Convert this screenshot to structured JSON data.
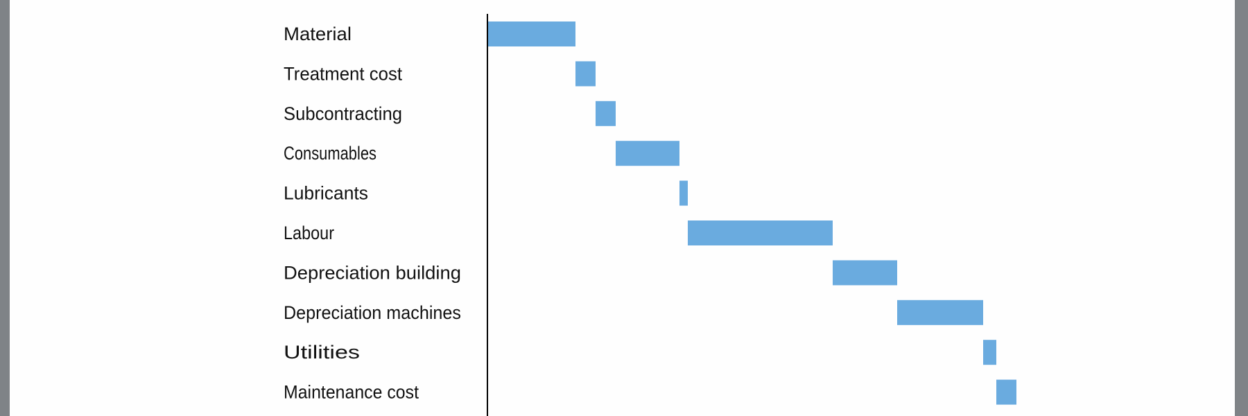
{
  "chart_data": {
    "type": "bar",
    "subtype": "waterfall",
    "orientation": "horizontal",
    "categories": [
      "Material",
      "Treatment cost",
      "Subcontracting",
      "Consumables",
      "Lubricants",
      "Labour",
      "Depreciation building",
      "Depreciation machines",
      "Utilities",
      "Maintenance cost"
    ],
    "values": [
      12.6,
      2.9,
      2.9,
      9.2,
      1.2,
      20.9,
      9.3,
      12.4,
      1.9,
      2.9
    ],
    "title": "",
    "xlabel": "",
    "ylabel": "",
    "grid": false,
    "legend": "none",
    "colors": {
      "bar": "#6aabdf",
      "axis": "#000000",
      "frame": "#7f8387"
    }
  }
}
